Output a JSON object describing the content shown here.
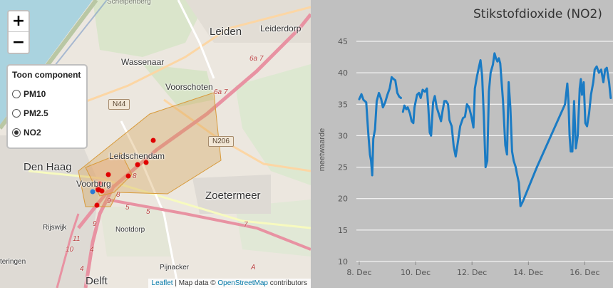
{
  "map": {
    "zoom_in_label": "+",
    "zoom_out_label": "−",
    "layer_control": {
      "title": "Toon component",
      "options": [
        {
          "label": "PM10",
          "selected": false
        },
        {
          "label": "PM2.5",
          "selected": false
        },
        {
          "label": "NO2",
          "selected": true
        }
      ]
    },
    "places": {
      "leiden": "Leiden",
      "leiderdorp": "Leiderdorp",
      "wassenaar": "Wassenaar",
      "voorschoten": "Voorschoten",
      "leidschendam": "Leidschendam",
      "den_haag": "Den Haag",
      "voorburg": "Voorburg",
      "zoetermeer": "Zoetermeer",
      "rijswijk": "Rijswijk",
      "nootdorp": "Nootdorp",
      "pijnacker": "Pijnacker",
      "delft": "Delft",
      "steringen": "teringen",
      "hillegom": "Schelpenberg"
    },
    "road_shields": {
      "n44": "N44",
      "n206": "N206"
    },
    "road_numbers": [
      "6a 7",
      "6a 7",
      "8",
      "8",
      "9",
      "9",
      "5",
      "5",
      "7",
      "11",
      "10",
      "4",
      "4",
      "A"
    ],
    "attribution": {
      "leaflet": "Leaflet",
      "sep": " | Map data © ",
      "osm": "OpenStreetMap",
      "tail": " contributors"
    },
    "colors": {
      "water": "#aad3df",
      "polygon": "#d4a050",
      "marker": "#e00000",
      "marker_blue": "#2a7ad4"
    }
  },
  "chart_data": {
    "type": "line",
    "title": "Stikstofdioxide (NO2)",
    "ylabel": "meetwaarde",
    "ylim": [
      10,
      45
    ],
    "yticks": [
      10,
      15,
      20,
      25,
      30,
      35,
      40,
      45
    ],
    "xticks": [
      "8. Dec",
      "10. Dec",
      "12. Dec",
      "14. Dec",
      "16. Dec"
    ],
    "xtick_days": [
      8,
      10,
      12,
      14,
      16
    ],
    "xlim_days": [
      7.9,
      17.0
    ],
    "color": "#1a7bc4",
    "series": [
      {
        "points": [
          [
            8.0,
            35.8
          ],
          [
            8.08,
            36.6
          ],
          [
            8.15,
            35.7
          ],
          [
            8.25,
            35.3
          ],
          [
            8.32,
            30.5
          ],
          [
            8.38,
            27.0
          ],
          [
            8.42,
            26.0
          ],
          [
            8.46,
            23.7
          ],
          [
            8.5,
            29.5
          ],
          [
            8.56,
            31.0
          ],
          [
            8.62,
            35.5
          ],
          [
            8.7,
            36.8
          ],
          [
            8.78,
            35.8
          ],
          [
            8.84,
            34.5
          ],
          [
            8.92,
            35.3
          ],
          [
            9.0,
            36.5
          ],
          [
            9.08,
            37.5
          ],
          [
            9.15,
            39.3
          ],
          [
            9.22,
            39.0
          ],
          [
            9.28,
            38.8
          ],
          [
            9.35,
            36.8
          ],
          [
            9.42,
            36.2
          ],
          [
            9.48,
            36.0
          ]
        ]
      },
      {
        "points": [
          [
            9.55,
            33.8
          ],
          [
            9.6,
            34.8
          ],
          [
            9.67,
            34.2
          ],
          [
            9.72,
            34.5
          ],
          [
            9.8,
            33.5
          ],
          [
            9.86,
            32.3
          ],
          [
            9.92,
            32.0
          ],
          [
            9.96,
            34.5
          ],
          [
            10.05,
            36.5
          ],
          [
            10.12,
            36.8
          ],
          [
            10.18,
            36.0
          ],
          [
            10.25,
            37.3
          ],
          [
            10.33,
            37.0
          ],
          [
            10.4,
            37.5
          ],
          [
            10.45,
            34.5
          ],
          [
            10.5,
            30.5
          ],
          [
            10.55,
            30.0
          ],
          [
            10.62,
            35.3
          ],
          [
            10.68,
            36.3
          ],
          [
            10.75,
            34.5
          ],
          [
            10.82,
            33.5
          ],
          [
            10.9,
            32.3
          ],
          [
            10.95,
            33.8
          ],
          [
            11.02,
            35.5
          ],
          [
            11.08,
            35.5
          ],
          [
            11.15,
            35.0
          ],
          [
            11.2,
            32.5
          ],
          [
            11.28,
            31.5
          ],
          [
            11.35,
            28.3
          ],
          [
            11.42,
            26.7
          ],
          [
            11.5,
            29.0
          ],
          [
            11.58,
            31.5
          ],
          [
            11.68,
            32.8
          ],
          [
            11.75,
            33.0
          ],
          [
            11.82,
            35.0
          ],
          [
            11.9,
            34.5
          ],
          [
            11.98,
            33.0
          ],
          [
            12.05,
            31.3
          ],
          [
            12.1,
            37.5
          ],
          [
            12.18,
            39.5
          ],
          [
            12.25,
            41.0
          ],
          [
            12.3,
            42.0
          ],
          [
            12.36,
            39.5
          ],
          [
            12.42,
            33.0
          ],
          [
            12.48,
            25.0
          ],
          [
            12.54,
            26.0
          ],
          [
            12.6,
            37.0
          ],
          [
            12.66,
            40.0
          ],
          [
            12.74,
            41.3
          ],
          [
            12.8,
            43.1
          ],
          [
            12.85,
            42.3
          ],
          [
            12.9,
            41.8
          ],
          [
            12.95,
            42.3
          ],
          [
            13.0,
            41.5
          ],
          [
            13.1,
            35.5
          ],
          [
            13.18,
            28.5
          ],
          [
            13.24,
            27.0
          ],
          [
            13.3,
            38.5
          ],
          [
            13.36,
            34.5
          ],
          [
            13.42,
            27.5
          ],
          [
            13.48,
            26.0
          ],
          [
            13.55,
            25.0
          ],
          [
            13.6,
            23.8
          ],
          [
            13.66,
            22.5
          ],
          [
            13.72,
            18.8
          ],
          [
            13.8,
            19.5
          ],
          [
            14.3,
            25.0
          ],
          [
            14.8,
            30.0
          ],
          [
            15.3,
            35.0
          ],
          [
            15.38,
            38.3
          ],
          [
            15.42,
            35.5
          ],
          [
            15.46,
            30.0
          ],
          [
            15.5,
            27.5
          ],
          [
            15.56,
            27.5
          ],
          [
            15.62,
            35.5
          ],
          [
            15.68,
            28.0
          ],
          [
            15.75,
            30.0
          ],
          [
            15.82,
            37.5
          ],
          [
            15.86,
            39.0
          ],
          [
            15.9,
            36.5
          ],
          [
            15.96,
            38.5
          ],
          [
            16.02,
            32.0
          ],
          [
            16.08,
            31.5
          ],
          [
            16.15,
            33.5
          ],
          [
            16.22,
            36.5
          ],
          [
            16.3,
            38.5
          ],
          [
            16.35,
            40.5
          ],
          [
            16.42,
            41.0
          ],
          [
            16.5,
            40.0
          ],
          [
            16.58,
            40.5
          ],
          [
            16.66,
            38.5
          ],
          [
            16.72,
            40.5
          ],
          [
            16.78,
            40.8
          ],
          [
            16.86,
            38.5
          ],
          [
            16.92,
            36.0
          ]
        ]
      }
    ]
  }
}
